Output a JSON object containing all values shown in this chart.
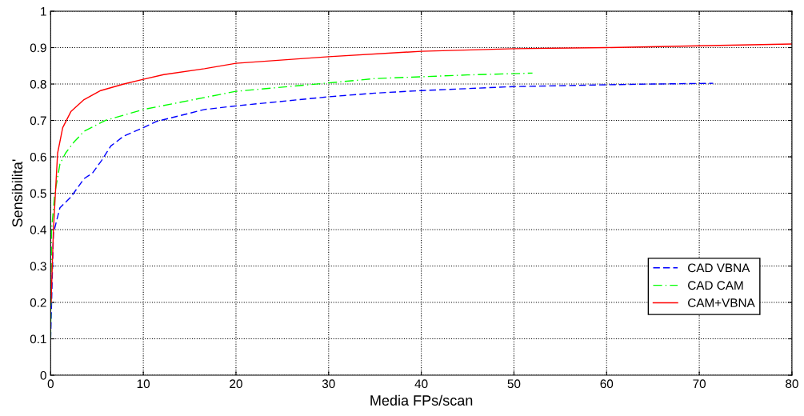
{
  "chart_data": {
    "type": "line",
    "xlabel": "Media FPs/scan",
    "ylabel": "Sensibilita'",
    "xlim": [
      0,
      80
    ],
    "ylim": [
      0,
      1
    ],
    "xticks": [
      0,
      10,
      20,
      30,
      40,
      50,
      60,
      70,
      80
    ],
    "yticks": [
      0,
      0.1,
      0.2,
      0.3,
      0.4,
      0.5,
      0.6,
      0.7,
      0.8,
      0.9,
      1
    ],
    "grid": true,
    "legend": "lower right",
    "series": [
      {
        "name": "CAD VBNA",
        "color": "#0000ff",
        "line_style": "dashed",
        "x": [
          0,
          0.3,
          1,
          2.2,
          3.6,
          4.5,
          5.5,
          6.5,
          7.9,
          10,
          11.4,
          16.6,
          20,
          30,
          35,
          40,
          50,
          60,
          65,
          71.5
        ],
        "values": [
          0.1,
          0.39,
          0.46,
          0.49,
          0.54,
          0.555,
          0.59,
          0.63,
          0.657,
          0.68,
          0.697,
          0.73,
          0.74,
          0.765,
          0.775,
          0.782,
          0.793,
          0.798,
          0.8,
          0.802
        ]
      },
      {
        "name": "CAD CAM",
        "color": "#00ff00",
        "line_style": "dashdot",
        "x": [
          0,
          0.1,
          0.45,
          1,
          1.6,
          2.5,
          3.6,
          5.9,
          10,
          16.6,
          20,
          30,
          35,
          40,
          45,
          52
        ],
        "values": [
          0.1,
          0.4,
          0.5,
          0.58,
          0.61,
          0.64,
          0.67,
          0.7,
          0.73,
          0.763,
          0.78,
          0.803,
          0.815,
          0.82,
          0.825,
          0.83
        ]
      },
      {
        "name": "CAM+VBNA",
        "color": "#ff0000",
        "line_style": "solid",
        "x": [
          0.05,
          0.3,
          0.75,
          1.3,
          2.2,
          3.6,
          5.4,
          7.9,
          10,
          12.2,
          16.6,
          20,
          30,
          40,
          50,
          60,
          70,
          80
        ],
        "values": [
          0.2,
          0.4,
          0.61,
          0.68,
          0.725,
          0.757,
          0.782,
          0.8,
          0.813,
          0.826,
          0.842,
          0.857,
          0.875,
          0.89,
          0.897,
          0.9,
          0.905,
          0.91
        ]
      }
    ]
  }
}
